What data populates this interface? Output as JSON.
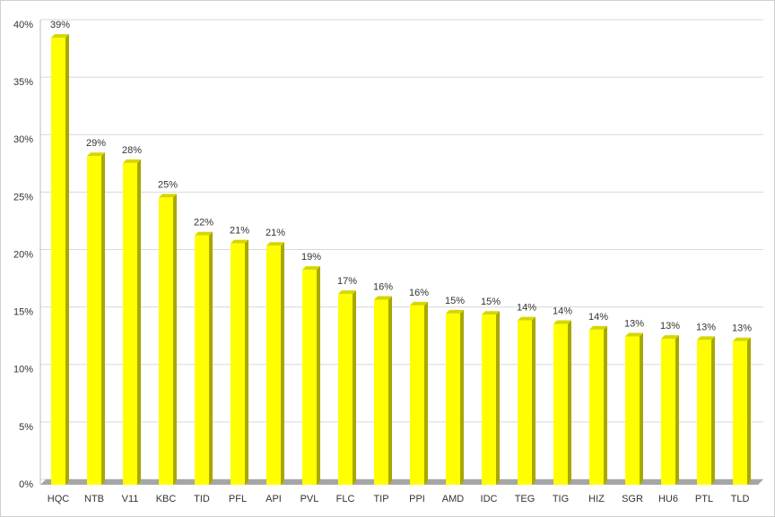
{
  "chart_data": {
    "type": "bar",
    "categories": [
      "HQC",
      "NTB",
      "V11",
      "KBC",
      "TID",
      "PFL",
      "API",
      "PVL",
      "FLC",
      "TIP",
      "PPI",
      "AMD",
      "IDC",
      "TEG",
      "TIG",
      "HIZ",
      "SGR",
      "HU6",
      "PTL",
      "TLD"
    ],
    "values": [
      38.9,
      28.6,
      28.0,
      25.0,
      21.7,
      21.0,
      20.8,
      18.7,
      16.6,
      16.1,
      15.6,
      14.9,
      14.8,
      14.3,
      14.0,
      13.5,
      12.9,
      12.7,
      12.6,
      12.5
    ],
    "value_labels": [
      "39%",
      "29%",
      "28%",
      "25%",
      "22%",
      "21%",
      "21%",
      "19%",
      "17%",
      "16%",
      "16%",
      "15%",
      "15%",
      "14%",
      "14%",
      "14%",
      "13%",
      "13%",
      "13%",
      "13%"
    ],
    "color": "#ffff00",
    "ylim": [
      0,
      40
    ],
    "yticks": [
      {
        "value": 0,
        "label": "0%"
      },
      {
        "value": 5,
        "label": "5%"
      },
      {
        "value": 10,
        "label": "10%"
      },
      {
        "value": 15,
        "label": "15%"
      },
      {
        "value": 20,
        "label": "20%"
      },
      {
        "value": 25,
        "label": "25%"
      },
      {
        "value": 30,
        "label": "30%"
      },
      {
        "value": 35,
        "label": "35%"
      },
      {
        "value": 40,
        "label": "40%"
      }
    ],
    "grid": true
  }
}
